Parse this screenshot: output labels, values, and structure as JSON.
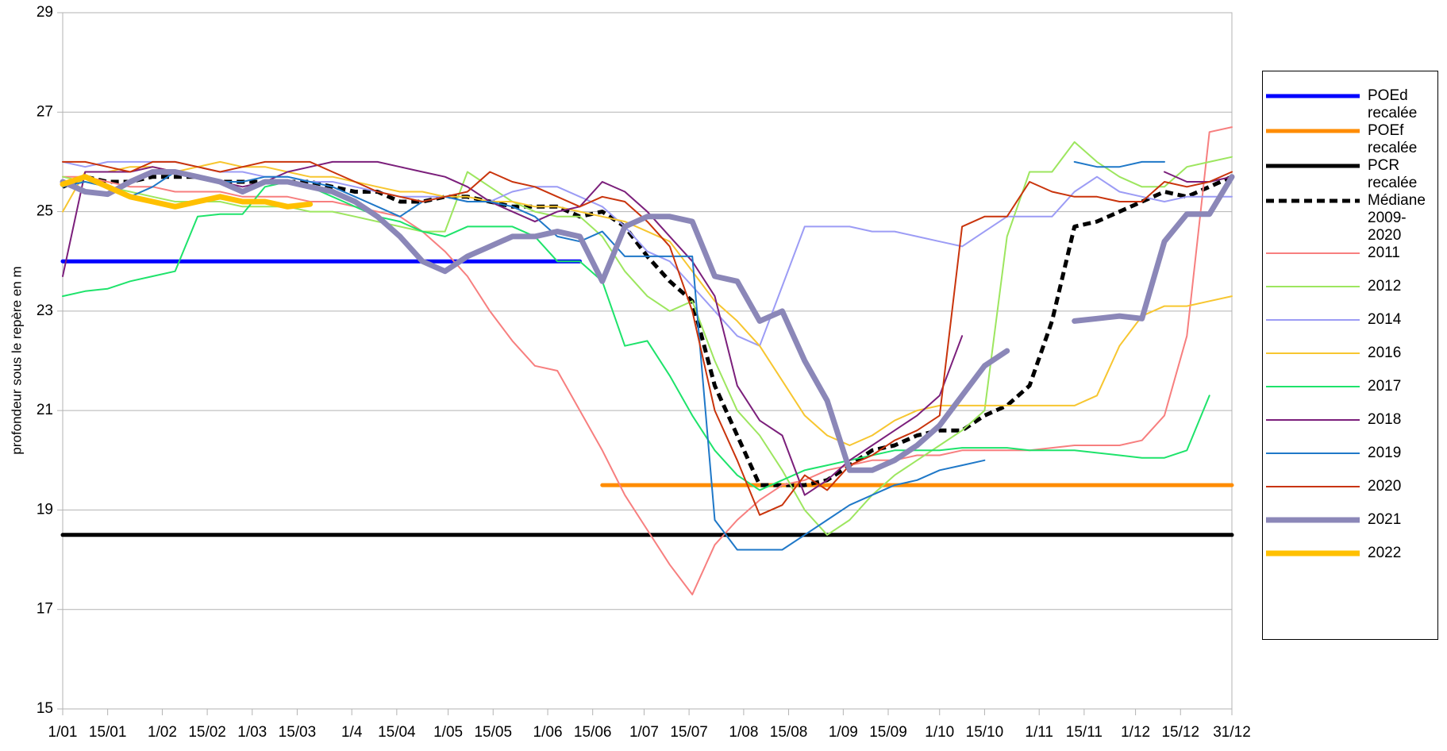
{
  "chart_data": {
    "type": "line",
    "y_label": "profondeur sous le repère en m",
    "ylim": [
      15,
      29
    ],
    "yticks": [
      15,
      17,
      19,
      21,
      23,
      25,
      27,
      29
    ],
    "xlim": [
      1,
      365
    ],
    "xticks": [
      {
        "value": 1,
        "label": "1/01"
      },
      {
        "value": 15,
        "label": "15/01"
      },
      {
        "value": 32,
        "label": "1/02"
      },
      {
        "value": 46,
        "label": "15/02"
      },
      {
        "value": 60,
        "label": "1/03"
      },
      {
        "value": 74,
        "label": "15/03"
      },
      {
        "value": 91,
        "label": "1/4"
      },
      {
        "value": 105,
        "label": "15/04"
      },
      {
        "value": 121,
        "label": "1/05"
      },
      {
        "value": 135,
        "label": "15/05"
      },
      {
        "value": 152,
        "label": "1/06"
      },
      {
        "value": 166,
        "label": "15/06"
      },
      {
        "value": 182,
        "label": "1/07"
      },
      {
        "value": 196,
        "label": "15/07"
      },
      {
        "value": 213,
        "label": "1/08"
      },
      {
        "value": 227,
        "label": "15/08"
      },
      {
        "value": 244,
        "label": "1/09"
      },
      {
        "value": 258,
        "label": "15/09"
      },
      {
        "value": 274,
        "label": "1/10"
      },
      {
        "value": 288,
        "label": "15/10"
      },
      {
        "value": 305,
        "label": "1/11"
      },
      {
        "value": 319,
        "label": "15/11"
      },
      {
        "value": 335,
        "label": "1/12"
      },
      {
        "value": 349,
        "label": "15/12"
      },
      {
        "value": 365,
        "label": "31/12"
      }
    ],
    "grid": true,
    "x": [
      1,
      8,
      15,
      22,
      29,
      36,
      43,
      50,
      57,
      64,
      71,
      78,
      85,
      92,
      99,
      106,
      113,
      120,
      127,
      134,
      141,
      148,
      155,
      162,
      169,
      176,
      183,
      190,
      197,
      204,
      211,
      218,
      225,
      232,
      239,
      246,
      253,
      260,
      267,
      274,
      281,
      288,
      295,
      302,
      309,
      316,
      323,
      330,
      337,
      344,
      351,
      358,
      365
    ],
    "series": [
      {
        "name": "POEd recalée",
        "color": "#0000ff",
        "line_width": 5,
        "dashed": false,
        "values": [
          24,
          24,
          24,
          24,
          24,
          24,
          24,
          24,
          24,
          24,
          24,
          24,
          24,
          24,
          24,
          24,
          24,
          24,
          24,
          24,
          24,
          24,
          24,
          24,
          null,
          null,
          null,
          null,
          null,
          null,
          null,
          null,
          null,
          null,
          null,
          null,
          null,
          null,
          null,
          null,
          null,
          null,
          null,
          null,
          null,
          null,
          null,
          null,
          null,
          null,
          null,
          null,
          null
        ]
      },
      {
        "name": "POEf recalée",
        "color": "#ff8c00",
        "line_width": 5,
        "dashed": false,
        "values": [
          null,
          null,
          null,
          null,
          null,
          null,
          null,
          null,
          null,
          null,
          null,
          null,
          null,
          null,
          null,
          null,
          null,
          null,
          null,
          null,
          null,
          null,
          null,
          null,
          19.5,
          19.5,
          19.5,
          19.5,
          19.5,
          19.5,
          19.5,
          19.5,
          19.5,
          19.5,
          19.5,
          19.5,
          19.5,
          19.5,
          19.5,
          19.5,
          19.5,
          19.5,
          19.5,
          19.5,
          19.5,
          19.5,
          19.5,
          19.5,
          19.5,
          19.5,
          19.5,
          19.5,
          19.5
        ]
      },
      {
        "name": "PCR recalée",
        "color": "#000000",
        "line_width": 5,
        "dashed": false,
        "values": [
          18.5,
          18.5,
          18.5,
          18.5,
          18.5,
          18.5,
          18.5,
          18.5,
          18.5,
          18.5,
          18.5,
          18.5,
          18.5,
          18.5,
          18.5,
          18.5,
          18.5,
          18.5,
          18.5,
          18.5,
          18.5,
          18.5,
          18.5,
          18.5,
          18.5,
          18.5,
          18.5,
          18.5,
          18.5,
          18.5,
          18.5,
          18.5,
          18.5,
          18.5,
          18.5,
          18.5,
          18.5,
          18.5,
          18.5,
          18.5,
          18.5,
          18.5,
          18.5,
          18.5,
          18.5,
          18.5,
          18.5,
          18.5,
          18.5,
          18.5,
          18.5,
          18.5,
          18.5
        ]
      },
      {
        "name": "Médiane 2009-2020",
        "color": "#000000",
        "line_width": 5,
        "dashed": true,
        "values": [
          25.5,
          25.7,
          25.6,
          25.6,
          25.7,
          25.7,
          25.7,
          25.6,
          25.6,
          25.6,
          25.6,
          25.6,
          25.5,
          25.4,
          25.4,
          25.2,
          25.2,
          25.3,
          25.3,
          25.2,
          25.1,
          25.1,
          25.1,
          24.9,
          25.0,
          24.7,
          24.1,
          23.6,
          23.2,
          21.5,
          20.5,
          19.5,
          19.5,
          19.5,
          19.6,
          19.9,
          20.2,
          20.3,
          20.5,
          20.6,
          20.6,
          20.9,
          21.1,
          21.5,
          22.8,
          24.7,
          24.8,
          25.0,
          25.2,
          25.4,
          25.3,
          25.5,
          25.7
        ]
      },
      {
        "name": "2011",
        "color": "#f77f7f",
        "line_width": 2,
        "dashed": false,
        "values": [
          25.7,
          25.7,
          25.6,
          25.5,
          25.5,
          25.4,
          25.4,
          25.4,
          25.3,
          25.3,
          25.3,
          25.2,
          25.2,
          25.1,
          25.0,
          24.9,
          24.6,
          24.2,
          23.7,
          23.0,
          22.4,
          21.9,
          21.8,
          21.0,
          20.2,
          19.3,
          18.6,
          17.9,
          17.3,
          18.3,
          18.8,
          19.2,
          19.5,
          19.6,
          19.8,
          19.9,
          20.0,
          20.0,
          20.1,
          20.1,
          20.2,
          20.2,
          20.2,
          20.2,
          20.25,
          20.3,
          20.3,
          20.3,
          20.4,
          20.9,
          22.5,
          26.6,
          26.7
        ]
      },
      {
        "name": "2012",
        "color": "#9de65f",
        "line_width": 2,
        "dashed": false,
        "values": [
          25.7,
          25.6,
          25.5,
          25.4,
          25.3,
          25.2,
          25.2,
          25.2,
          25.1,
          25.1,
          25.1,
          25.0,
          25.0,
          24.9,
          24.8,
          24.7,
          24.6,
          24.6,
          25.8,
          25.5,
          25.2,
          25.0,
          24.9,
          24.9,
          24.5,
          23.8,
          23.3,
          23.0,
          23.2,
          22.0,
          21.0,
          20.5,
          19.8,
          19.0,
          18.5,
          18.8,
          19.3,
          19.7,
          20.0,
          20.3,
          20.6,
          21.0,
          24.5,
          25.8,
          25.8,
          26.4,
          26.0,
          25.7,
          25.5,
          25.5,
          25.9,
          26.0,
          26.1
        ]
      },
      {
        "name": "2014",
        "color": "#9c9cf5",
        "line_width": 2,
        "dashed": false,
        "values": [
          26.0,
          25.9,
          26.0,
          26.0,
          26.0,
          26.0,
          25.9,
          25.8,
          25.8,
          25.7,
          25.7,
          25.6,
          25.6,
          25.5,
          25.4,
          25.3,
          25.3,
          25.3,
          25.2,
          25.2,
          25.4,
          25.5,
          25.5,
          25.3,
          25.1,
          24.7,
          24.2,
          24.0,
          23.5,
          23.0,
          22.5,
          22.3,
          23.5,
          24.7,
          24.7,
          24.7,
          24.6,
          24.6,
          24.5,
          24.4,
          24.3,
          24.6,
          24.9,
          24.9,
          24.9,
          25.4,
          25.7,
          25.4,
          25.3,
          25.2,
          25.3,
          25.3,
          25.3
        ]
      },
      {
        "name": "2016",
        "color": "#f7c630",
        "line_width": 2,
        "dashed": false,
        "values": [
          25.0,
          25.8,
          25.8,
          25.9,
          25.9,
          25.8,
          25.9,
          26.0,
          25.9,
          25.9,
          25.8,
          25.7,
          25.7,
          25.6,
          25.5,
          25.4,
          25.4,
          25.3,
          25.3,
          25.2,
          25.2,
          25.1,
          25.1,
          25.0,
          24.9,
          24.8,
          24.6,
          24.4,
          23.8,
          23.2,
          22.8,
          22.3,
          21.6,
          20.9,
          20.5,
          20.3,
          20.5,
          20.8,
          21.0,
          21.1,
          21.1,
          21.1,
          21.1,
          21.1,
          21.1,
          21.1,
          21.3,
          22.3,
          22.9,
          23.1,
          23.1,
          23.2,
          23.3
        ]
      },
      {
        "name": "2017",
        "color": "#1ee36b",
        "line_width": 2,
        "dashed": false,
        "values": [
          23.3,
          23.4,
          23.45,
          23.6,
          23.7,
          23.8,
          24.9,
          24.95,
          24.95,
          25.5,
          25.6,
          25.5,
          25.3,
          25.1,
          24.9,
          24.8,
          24.6,
          24.5,
          24.7,
          24.7,
          24.7,
          24.5,
          24.0,
          24.0,
          23.6,
          22.3,
          22.4,
          21.7,
          20.9,
          20.2,
          19.7,
          19.4,
          19.6,
          19.8,
          19.9,
          20.0,
          20.1,
          20.2,
          20.2,
          20.2,
          20.25,
          20.25,
          20.25,
          20.2,
          20.2,
          20.2,
          20.15,
          20.1,
          20.05,
          20.05,
          20.2,
          21.3,
          null
        ]
      },
      {
        "name": "2018",
        "color": "#7b1f7b",
        "line_width": 2,
        "dashed": false,
        "values": [
          23.7,
          25.8,
          25.8,
          25.8,
          25.9,
          25.8,
          25.7,
          25.6,
          25.5,
          25.6,
          25.8,
          25.9,
          26.0,
          26.0,
          26.0,
          25.9,
          25.8,
          25.7,
          25.5,
          25.2,
          25.0,
          24.8,
          25.0,
          25.1,
          25.6,
          25.4,
          25.0,
          24.5,
          24.0,
          23.3,
          21.5,
          20.8,
          20.5,
          19.3,
          19.6,
          20.0,
          20.3,
          20.6,
          20.9,
          21.3,
          22.5,
          null,
          null,
          null,
          null,
          null,
          null,
          null,
          null,
          25.8,
          25.6,
          25.6,
          25.7
        ]
      },
      {
        "name": "2019",
        "color": "#1f78c8",
        "line_width": 2,
        "dashed": false,
        "values": [
          25.5,
          25.6,
          25.5,
          25.3,
          25.5,
          25.8,
          25.7,
          25.6,
          25.6,
          25.7,
          25.7,
          25.6,
          25.5,
          25.3,
          25.1,
          24.9,
          25.2,
          25.3,
          25.2,
          25.2,
          25.1,
          24.9,
          24.5,
          24.4,
          24.6,
          24.1,
          24.1,
          24.1,
          24.1,
          18.8,
          18.2,
          18.2,
          18.2,
          18.5,
          18.8,
          19.1,
          19.3,
          19.5,
          19.6,
          19.8,
          19.9,
          20.0,
          null,
          null,
          null,
          26.0,
          25.9,
          25.9,
          26.0,
          26.0,
          null,
          null,
          null
        ]
      },
      {
        "name": "2020",
        "color": "#c9340c",
        "line_width": 2,
        "dashed": false,
        "values": [
          26.0,
          26.0,
          25.9,
          25.8,
          26.0,
          26.0,
          25.9,
          25.8,
          25.9,
          26.0,
          26.0,
          26.0,
          25.8,
          25.6,
          25.4,
          25.3,
          25.2,
          25.3,
          25.4,
          25.8,
          25.6,
          25.5,
          25.3,
          25.1,
          25.3,
          25.2,
          24.8,
          24.3,
          23.0,
          21.0,
          20.0,
          18.9,
          19.1,
          19.7,
          19.4,
          19.9,
          20.1,
          20.4,
          20.6,
          20.9,
          24.7,
          24.9,
          24.9,
          25.6,
          25.4,
          25.3,
          25.3,
          25.2,
          25.2,
          25.6,
          25.5,
          25.6,
          25.8
        ]
      },
      {
        "name": "2021",
        "color": "#8b87b8",
        "line_width": 7,
        "dashed": false,
        "values": [
          25.6,
          25.4,
          25.35,
          25.6,
          25.8,
          25.8,
          25.7,
          25.6,
          25.4,
          25.6,
          25.6,
          25.5,
          25.4,
          25.2,
          24.9,
          24.5,
          24.0,
          23.8,
          24.1,
          24.3,
          24.5,
          24.5,
          24.6,
          24.5,
          23.6,
          24.7,
          24.9,
          24.9,
          24.8,
          23.7,
          23.6,
          22.8,
          23.0,
          22.0,
          21.2,
          19.8,
          19.8,
          20.0,
          20.3,
          20.7,
          21.3,
          21.9,
          22.2,
          null,
          null,
          22.8,
          22.85,
          22.9,
          22.85,
          24.4,
          24.95,
          24.95,
          25.7
        ]
      },
      {
        "name": "2022",
        "color": "#ffc000",
        "line_width": 7,
        "dashed": false,
        "values": [
          25.55,
          25.7,
          25.5,
          25.3,
          25.2,
          25.1,
          25.2,
          25.3,
          25.2,
          25.2,
          25.1,
          25.15,
          null,
          null,
          null,
          null,
          null,
          null,
          null,
          null,
          null,
          null,
          null,
          null,
          null,
          null,
          null,
          null,
          null,
          null,
          null,
          null,
          null,
          null,
          null,
          null,
          null,
          null,
          null,
          null,
          null,
          null,
          null,
          null,
          null,
          null,
          null,
          null,
          null,
          null,
          null,
          null,
          null
        ]
      }
    ]
  }
}
